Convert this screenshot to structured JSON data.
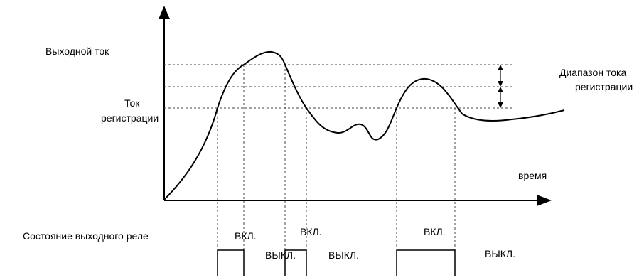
{
  "labels": {
    "output_current": "Выходной ток",
    "reg_current_line1": "Ток",
    "reg_current_line2": "регистрации",
    "range_line1": "Диапазон тока",
    "range_line2": "регистрации",
    "time": "время",
    "relay_state": "Состояние выходного реле"
  },
  "relay_states": [
    "ВКЛ.",
    "ВЫКЛ.",
    "ВКЛ.",
    "ВЫКЛ.",
    "ВКЛ.",
    "ВЫКЛ."
  ],
  "colors": {
    "line": "#000000",
    "guide": "#555555",
    "background": "#ffffff"
  }
}
